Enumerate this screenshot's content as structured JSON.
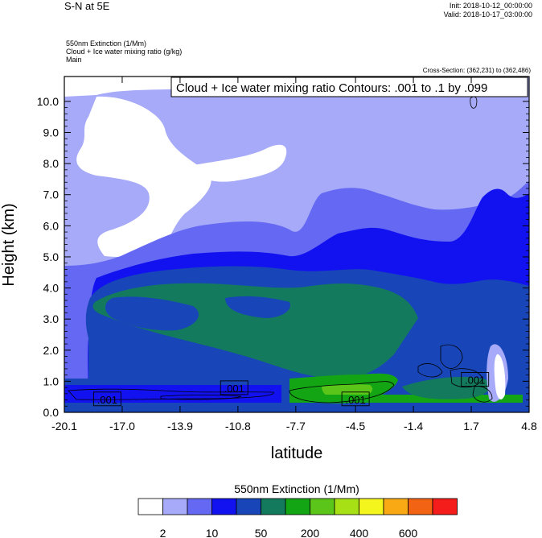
{
  "header": {
    "title": "S-N at 5E",
    "init": "Init: 2018-10-12_00:00:00",
    "valid": "Valid: 2018-10-17_03:00:00",
    "field1": "550nm Extinction   (1/Mm)",
    "field2": "Cloud + Ice water mixing ratio   (g/kg)",
    "field3": "Main",
    "cross_section": "Cross-Section: (362,231) to (362,486)"
  },
  "chart_data": {
    "type": "contour",
    "title": "Cloud + Ice water mixing ratio Contours: .001 to .1 by .099",
    "xlabel": "latitude",
    "ylabel": "Height (km)",
    "xlim": [
      -20.1,
      4.8
    ],
    "ylim": [
      0.0,
      10.8
    ],
    "xticks": [
      "-20.1",
      "-17.0",
      "-13.9",
      "-10.8",
      "-7.7",
      "-4.5",
      "-1.4",
      "1.7",
      "4.8"
    ],
    "xtick_values": [
      -20.1,
      -17.0,
      -13.9,
      -10.8,
      -7.7,
      -4.5,
      -1.4,
      1.7,
      4.8
    ],
    "yticks": [
      "0.0",
      "1.0",
      "2.0",
      "3.0",
      "4.0",
      "5.0",
      "6.0",
      "7.0",
      "8.0",
      "9.0",
      "10.0"
    ],
    "ytick_values": [
      0,
      1,
      2,
      3,
      4,
      5,
      6,
      7,
      8,
      9,
      10
    ],
    "contour_labels": [
      {
        "text": ".001",
        "x": -17.8,
        "y": 0.42
      },
      {
        "text": ".001",
        "x": -11.0,
        "y": 0.78
      },
      {
        "text": ".001",
        "x": -4.5,
        "y": 0.42
      },
      {
        "text": ".001",
        "x": 1.9,
        "y": 1.05
      }
    ],
    "colorbar": {
      "title": "550nm Extinction  (1/Mm)",
      "colors": [
        "#ffffff",
        "#a6aaf8",
        "#6468f3",
        "#1212f0",
        "#1846b8",
        "#137a5d",
        "#13a514",
        "#5cc519",
        "#a8e016",
        "#f5f51e",
        "#f8a914",
        "#f26314",
        "#f51c1c"
      ],
      "labels": [
        "2",
        "10",
        "50",
        "200",
        "400",
        "600"
      ]
    }
  }
}
